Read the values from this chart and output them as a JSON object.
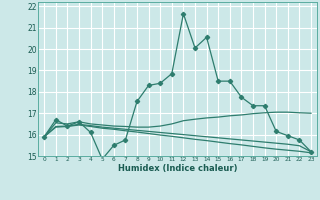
{
  "title": "",
  "xlabel": "Humidex (Indice chaleur)",
  "ylabel": "",
  "bg_color": "#cce8e8",
  "grid_color": "#ffffff",
  "line_color": "#2e7d6e",
  "xlim": [
    -0.5,
    23.5
  ],
  "ylim": [
    15,
    22.2
  ],
  "xticks": [
    0,
    1,
    2,
    3,
    4,
    5,
    6,
    7,
    8,
    9,
    10,
    11,
    12,
    13,
    14,
    15,
    16,
    17,
    18,
    19,
    20,
    21,
    22,
    23
  ],
  "yticks": [
    15,
    16,
    17,
    18,
    19,
    20,
    21,
    22
  ],
  "series": [
    {
      "x": [
        0,
        1,
        2,
        3,
        4,
        5,
        6,
        7,
        8,
        9,
        10,
        11,
        12,
        13,
        14,
        15,
        16,
        17,
        18,
        19,
        20,
        21,
        22,
        23
      ],
      "y": [
        15.9,
        16.7,
        16.4,
        16.6,
        16.1,
        14.85,
        15.5,
        15.75,
        17.55,
        18.3,
        18.4,
        18.85,
        21.65,
        20.05,
        20.55,
        18.5,
        18.5,
        17.75,
        17.35,
        17.35,
        16.15,
        15.95,
        15.75,
        15.2
      ],
      "marker": true
    },
    {
      "x": [
        0,
        1,
        2,
        3,
        4,
        5,
        6,
        7,
        8,
        9,
        10,
        11,
        12,
        13,
        14,
        15,
        16,
        17,
        18,
        19,
        20,
        21,
        22,
        23
      ],
      "y": [
        15.9,
        16.55,
        16.5,
        16.6,
        16.5,
        16.45,
        16.4,
        16.38,
        16.35,
        16.35,
        16.4,
        16.5,
        16.65,
        16.72,
        16.78,
        16.82,
        16.88,
        16.92,
        16.98,
        17.02,
        17.05,
        17.05,
        17.02,
        17.0
      ],
      "marker": false
    },
    {
      "x": [
        0,
        1,
        2,
        3,
        4,
        5,
        6,
        7,
        8,
        9,
        10,
        11,
        12,
        13,
        14,
        15,
        16,
        17,
        18,
        19,
        20,
        21,
        22,
        23
      ],
      "y": [
        15.9,
        16.35,
        16.38,
        16.45,
        16.38,
        16.3,
        16.25,
        16.18,
        16.12,
        16.05,
        15.98,
        15.92,
        15.85,
        15.78,
        15.72,
        15.65,
        15.58,
        15.52,
        15.45,
        15.38,
        15.32,
        15.27,
        15.22,
        15.15
      ],
      "marker": false
    },
    {
      "x": [
        0,
        1,
        2,
        3,
        4,
        5,
        6,
        7,
        8,
        9,
        10,
        11,
        12,
        13,
        14,
        15,
        16,
        17,
        18,
        19,
        20,
        21,
        22,
        23
      ],
      "y": [
        15.9,
        16.38,
        16.4,
        16.48,
        16.42,
        16.35,
        16.3,
        16.25,
        16.2,
        16.15,
        16.1,
        16.05,
        16.0,
        15.95,
        15.9,
        15.85,
        15.8,
        15.75,
        15.7,
        15.65,
        15.6,
        15.55,
        15.48,
        15.2
      ],
      "marker": false
    }
  ]
}
